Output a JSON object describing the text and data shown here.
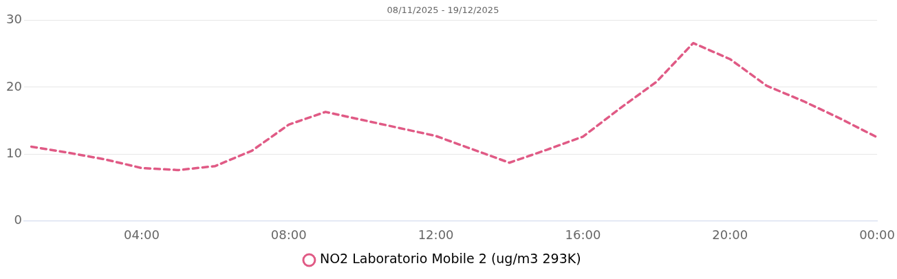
{
  "chart_data": {
    "type": "line",
    "title": "08/11/2025 - 19/12/2025",
    "x": [
      1,
      2,
      3,
      4,
      5,
      6,
      7,
      8,
      9,
      10,
      11,
      12,
      13,
      14,
      15,
      16,
      17,
      18,
      19,
      20,
      21,
      22,
      23,
      24
    ],
    "series": [
      {
        "name": "NO2 Laboratorio Mobile 2 (ug/m3 293K)",
        "color": "#e05a85",
        "values": [
          11.1,
          10.2,
          9.2,
          7.9,
          7.6,
          8.2,
          10.5,
          14.4,
          16.3,
          15.1,
          13.9,
          12.7,
          10.7,
          8.7,
          10.6,
          12.6,
          16.8,
          20.8,
          26.6,
          24.2,
          20.2,
          17.9,
          15.3,
          12.5
        ]
      }
    ],
    "xlim": [
      0.8,
      24
    ],
    "xticks": [
      {
        "value": 4,
        "label": "04:00"
      },
      {
        "value": 8,
        "label": "08:00"
      },
      {
        "value": 12,
        "label": "12:00"
      },
      {
        "value": 16,
        "label": "16:00"
      },
      {
        "value": 20,
        "label": "20:00"
      },
      {
        "value": 24,
        "label": "00:00"
      }
    ],
    "ylim": [
      0,
      30
    ],
    "yticks": [
      0,
      10,
      20,
      30
    ],
    "grid": "y",
    "legend": "bottom",
    "line_style": "dashed"
  }
}
